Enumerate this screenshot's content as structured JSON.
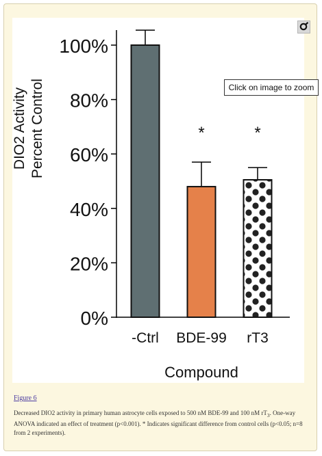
{
  "figure": {
    "link_label": "Figure 6",
    "zoom_tooltip": "Click on image to zoom",
    "zoom_icon": "magnifier-icon",
    "caption": {
      "part1": "Decreased DIO2 activity in primary human astrocyte cells exposed to 500 nM BDE-99 and 100 nM rT",
      "sub": "3",
      "part2": ". One-way ANOVA indicated an effect of treatment (p<0.001). * Indicates significant difference from control cells (p<0.05; n=8 from 2 experiments)."
    }
  },
  "chart_data": {
    "type": "bar",
    "title": "",
    "xlabel": "Compound",
    "ylabel_lines": [
      "DIO2 Activity",
      "Percent Control"
    ],
    "ylim": [
      0,
      100
    ],
    "yticks": [
      0,
      20,
      40,
      60,
      80,
      100
    ],
    "ytick_labels": [
      "0%",
      "20%",
      "40%",
      "60%",
      "80%",
      "100%"
    ],
    "categories": [
      "-Ctrl",
      "BDE-99",
      "rT3"
    ],
    "values": [
      100,
      48,
      50.5
    ],
    "error_upper": [
      105.5,
      57,
      55
    ],
    "significance": [
      "",
      "*",
      "*"
    ],
    "colors": [
      "#5f6f72",
      "#e5814a",
      "#ffffff"
    ],
    "patterns": [
      "none",
      "none",
      "black-dots"
    ],
    "legend": "none",
    "grid": false
  }
}
